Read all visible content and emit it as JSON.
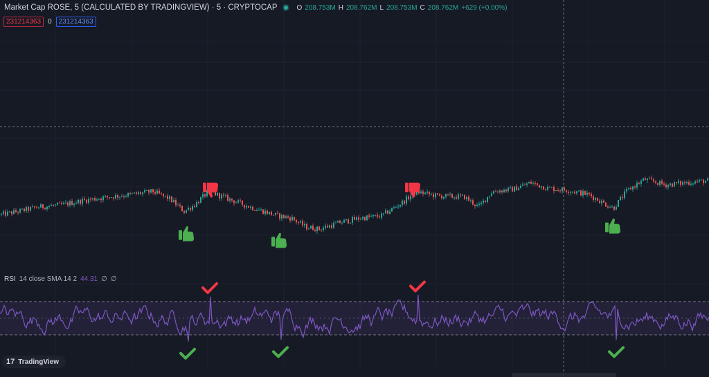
{
  "header": {
    "symbol_title": "Market Cap ROSE, 5 (CALCULATED BY TRADINGVIEW) · 5 · CRYPTOCAP",
    "ohlc": {
      "o_label": "O",
      "o": "208.753M",
      "h_label": "H",
      "h": "208.762M",
      "l_label": "L",
      "l": "208.753M",
      "c_label": "C",
      "c": "208.762M",
      "change": "+629 (+0.00%)"
    }
  },
  "indicator_values": {
    "v1": "231214363",
    "v2": "0",
    "v3": "231214363"
  },
  "rsi_pane": {
    "name": "RSI",
    "params": "14 close SMA 14 2",
    "value": "44.31",
    "extra1": "∅",
    "extra2": "∅"
  },
  "watermark": {
    "logo": "17",
    "text": "TradingView"
  },
  "colors": {
    "background": "#161a25",
    "up": "#26a69a",
    "down": "#ef5350",
    "rsi_line": "#7e57c2",
    "rsi_band": "#7e57c2",
    "sell_signal": "#f23645",
    "buy_signal": "#4caf50"
  },
  "icons": {
    "sell_price": "thumbs-down-icon",
    "buy_price": "thumbs-up-icon",
    "sell_rsi": "checkmark-icon",
    "buy_rsi": "checkmark-icon"
  },
  "chart_data": [
    {
      "type": "candlestick",
      "title": "",
      "grid": true,
      "ylim": [
        0,
        100
      ],
      "anchor_path": [
        [
          0,
          31
        ],
        [
          25,
          34
        ],
        [
          55,
          38
        ],
        [
          90,
          40
        ],
        [
          120,
          44
        ],
        [
          155,
          47
        ],
        [
          185,
          49
        ],
        [
          220,
          52
        ],
        [
          245,
          45
        ],
        [
          265,
          34
        ],
        [
          280,
          40
        ],
        [
          300,
          52
        ],
        [
          330,
          45
        ],
        [
          360,
          38
        ],
        [
          400,
          30
        ],
        [
          420,
          28
        ],
        [
          440,
          20
        ],
        [
          460,
          18
        ],
        [
          490,
          24
        ],
        [
          520,
          28
        ],
        [
          550,
          30
        ],
        [
          580,
          42
        ],
        [
          600,
          52
        ],
        [
          630,
          48
        ],
        [
          670,
          47
        ],
        [
          690,
          38
        ],
        [
          710,
          52
        ],
        [
          740,
          54
        ],
        [
          765,
          60
        ],
        [
          790,
          55
        ],
        [
          820,
          53
        ],
        [
          850,
          49
        ],
        [
          875,
          40
        ],
        [
          885,
          37
        ],
        [
          905,
          53
        ],
        [
          930,
          63
        ],
        [
          960,
          58
        ],
        [
          990,
          60
        ],
        [
          1024,
          62
        ]
      ],
      "sell_signals": [
        {
          "x": 305,
          "y": 55
        },
        {
          "x": 597,
          "y": 55
        }
      ],
      "buy_signals": [
        {
          "x": 270,
          "y": 12
        },
        {
          "x": 404,
          "y": 6
        },
        {
          "x": 886,
          "y": 19
        }
      ]
    },
    {
      "type": "line",
      "title": "RSI",
      "ylim": [
        0,
        100
      ],
      "upper_band": 70,
      "lower_band": 30,
      "mid_line": 50,
      "overbought_signals": [
        {
          "x": 303,
          "value": 70
        },
        {
          "x": 603,
          "value": 72
        }
      ],
      "oversold_signals": [
        {
          "x": 271,
          "value": 26
        },
        {
          "x": 405,
          "value": 28
        },
        {
          "x": 890,
          "value": 28
        }
      ]
    }
  ]
}
